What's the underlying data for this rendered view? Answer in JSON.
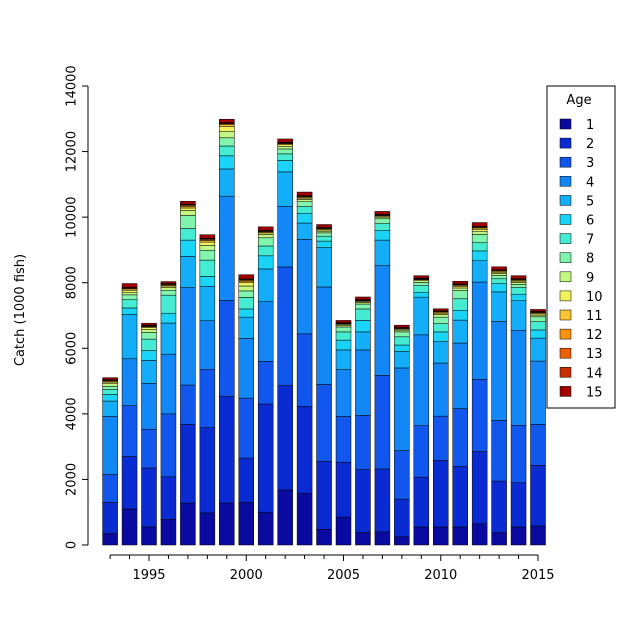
{
  "chart_data": {
    "type": "bar",
    "stacked": true,
    "title": "",
    "xlabel": "",
    "ylabel": "Catch (1000 fish)",
    "ylim": [
      0,
      14000
    ],
    "yticks": [
      0,
      2000,
      4000,
      6000,
      8000,
      10000,
      12000,
      14000
    ],
    "xticks": [
      1995,
      2000,
      2005,
      2010,
      2015
    ],
    "legend_title": "Age",
    "legend_position": "right",
    "grid": false,
    "years": [
      1993,
      1994,
      1995,
      1996,
      1997,
      1998,
      1999,
      2000,
      2001,
      2002,
      2003,
      2004,
      2005,
      2006,
      2007,
      2008,
      2009,
      2010,
      2011,
      2012,
      2013,
      2014,
      2015
    ],
    "series": [
      {
        "name": "1",
        "color": "#0a0aa0",
        "values": [
          350,
          1100,
          550,
          780,
          1280,
          980,
          1280,
          1300,
          1000,
          1680,
          1580,
          480,
          850,
          380,
          400,
          250,
          550,
          550,
          550,
          650,
          380,
          550,
          580
        ]
      },
      {
        "name": "2",
        "color": "#0a2ad2",
        "values": [
          950,
          1600,
          1800,
          1300,
          2400,
          2600,
          3250,
          1350,
          3300,
          3180,
          2650,
          2070,
          1670,
          1920,
          1920,
          1150,
          1520,
          2030,
          1850,
          2200,
          1570,
          1350,
          1850
        ]
      },
      {
        "name": "3",
        "color": "#1157ee",
        "values": [
          850,
          1550,
          1180,
          1920,
          1200,
          1780,
          2930,
          1830,
          1300,
          3620,
          2210,
          2350,
          1400,
          1650,
          2850,
          1480,
          1570,
          1350,
          1760,
          2200,
          1850,
          1750,
          1250
        ]
      },
      {
        "name": "4",
        "color": "#1387f5",
        "values": [
          1770,
          1430,
          1400,
          1820,
          2970,
          1480,
          3180,
          1820,
          1820,
          1850,
          2880,
          2970,
          1430,
          2000,
          3350,
          2520,
          2770,
          1620,
          2000,
          2970,
          3020,
          2900,
          1930
        ]
      },
      {
        "name": "5",
        "color": "#14aef8",
        "values": [
          470,
          1350,
          700,
          950,
          950,
          1050,
          830,
          650,
          1000,
          1050,
          500,
          1200,
          600,
          550,
          780,
          500,
          1150,
          650,
          700,
          650,
          900,
          900,
          700
        ]
      },
      {
        "name": "6",
        "color": "#19d4f7",
        "values": [
          200,
          200,
          300,
          300,
          500,
          300,
          400,
          250,
          400,
          350,
          300,
          200,
          300,
          350,
          300,
          200,
          150,
          300,
          300,
          300,
          250,
          200,
          250
        ]
      },
      {
        "name": "7",
        "color": "#46ecd2",
        "values": [
          150,
          250,
          350,
          550,
          350,
          500,
          300,
          350,
          300,
          200,
          200,
          150,
          250,
          350,
          200,
          250,
          200,
          250,
          350,
          250,
          150,
          200,
          250
        ]
      },
      {
        "name": "8",
        "color": "#81f4ad",
        "values": [
          100,
          150,
          200,
          150,
          400,
          300,
          250,
          200,
          250,
          150,
          150,
          100,
          150,
          150,
          150,
          150,
          100,
          200,
          250,
          250,
          100,
          100,
          150
        ]
      },
      {
        "name": "9",
        "color": "#c2f784",
        "values": [
          80,
          80,
          100,
          80,
          150,
          150,
          200,
          150,
          100,
          80,
          70,
          50,
          50,
          50,
          50,
          50,
          50,
          80,
          80,
          100,
          60,
          60,
          50
        ]
      },
      {
        "name": "10",
        "color": "#f2f25c",
        "values": [
          50,
          60,
          50,
          50,
          80,
          100,
          150,
          100,
          50,
          50,
          40,
          40,
          30,
          30,
          30,
          30,
          30,
          40,
          50,
          60,
          40,
          40,
          40
        ]
      },
      {
        "name": "11",
        "color": "#f9c534",
        "values": [
          30,
          40,
          30,
          30,
          50,
          50,
          50,
          50,
          30,
          30,
          30,
          30,
          20,
          20,
          20,
          20,
          20,
          30,
          30,
          40,
          30,
          30,
          30
        ]
      },
      {
        "name": "12",
        "color": "#f8920f",
        "values": [
          20,
          20,
          20,
          20,
          30,
          30,
          30,
          30,
          20,
          20,
          20,
          20,
          15,
          15,
          15,
          15,
          15,
          20,
          20,
          20,
          20,
          20,
          20
        ]
      },
      {
        "name": "13",
        "color": "#ec5f09",
        "values": [
          15,
          15,
          15,
          15,
          20,
          20,
          20,
          20,
          15,
          15,
          15,
          15,
          10,
          10,
          10,
          10,
          10,
          15,
          15,
          15,
          15,
          15,
          15
        ]
      },
      {
        "name": "14",
        "color": "#c62e04",
        "values": [
          10,
          10,
          10,
          10,
          15,
          15,
          15,
          15,
          10,
          10,
          10,
          10,
          10,
          10,
          10,
          10,
          10,
          10,
          10,
          10,
          10,
          10,
          10
        ]
      },
      {
        "name": "15",
        "color": "#a00000",
        "values": [
          60,
          120,
          60,
          60,
          90,
          110,
          100,
          130,
          110,
          100,
          110,
          90,
          65,
          80,
          90,
          70,
          70,
          60,
          80,
          120,
          90,
          90,
          60
        ]
      }
    ]
  }
}
